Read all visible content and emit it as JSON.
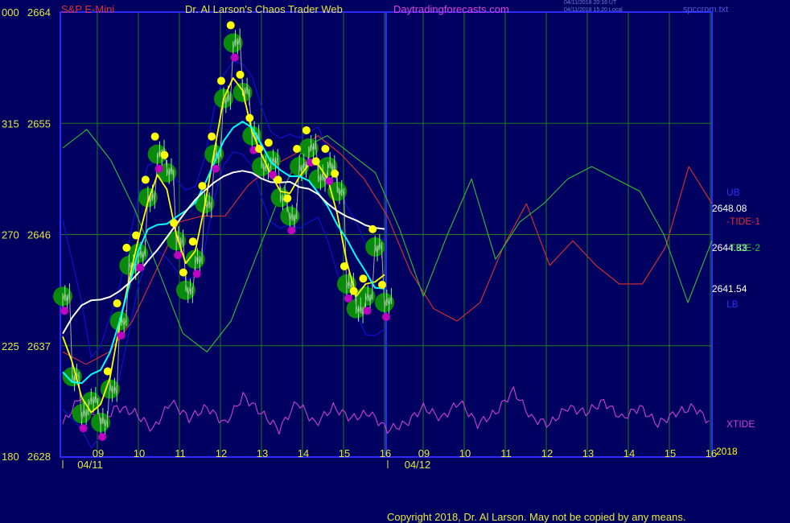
{
  "header": {
    "instrument": "S&P E-Mini",
    "title": "Dr. Al Larson's Chaos Trader Web",
    "site": "Daytradingforecasts.com",
    "stamp1": "04/11/2018 20:16 UT",
    "stamp2": "04/11/2018 15:20 Local",
    "filename": "spccrom.txt"
  },
  "footer": {
    "copyright": "Copyright 2018, Dr. Al Larson. May not be copied by any means."
  },
  "colors": {
    "background": "#000060",
    "grid": "#1e7b1e",
    "frame": "#2b2bff",
    "price": "#a8a8a8",
    "yellow_ma": "#ffff00",
    "cyan_ma": "#00ffff",
    "white_ma": "#ffffff",
    "band": "#1010d0",
    "tide1": "#e03030",
    "tide2": "#30c030",
    "xtide": "#d040d0",
    "dot_yellow": "#ffff00",
    "dot_magenta": "#c000c0",
    "halo": "#0a8a0a"
  },
  "chart_data": {
    "type": "line",
    "title": "S&P E-Mini",
    "y_axis": {
      "ylim": [
        2628,
        2664
      ],
      "tick_values": [
        2628,
        2637,
        2646,
        2655,
        2664
      ],
      "tick_labels": [
        "2628",
        "2637",
        "2646",
        "2655",
        "2664"
      ],
      "secondary_labels": [
        "180",
        "225",
        "270",
        "315",
        "000"
      ]
    },
    "x_axis": {
      "hour_labels": [
        "09",
        "10",
        "11",
        "12",
        "13",
        "14",
        "15",
        "16",
        "09",
        "10",
        "11",
        "12",
        "13",
        "14",
        "15",
        "16"
      ],
      "date_labels": [
        "04/11",
        "04/12"
      ],
      "day_divider_at_hour_index": 7
    },
    "end_labels": [
      {
        "text": "UB",
        "color": "#2b2bff"
      },
      {
        "text": "2648.08",
        "color": "#ffffff"
      },
      {
        "text": "-TIDE-1",
        "color": "#e03030"
      },
      {
        "text": "2644.83",
        "color": "#ffffff"
      },
      {
        "text": "-TIDE-2",
        "color": "#30c030"
      },
      {
        "text": "2641.54",
        "color": "#ffffff"
      },
      {
        "text": "LB",
        "color": "#2b2bff"
      },
      {
        "text": "XTIDE",
        "color": "#d040d0"
      },
      {
        "text": "2018",
        "color": "#ffff00"
      }
    ],
    "series": [
      {
        "name": "Price",
        "values": [
          2641.0,
          2634.5,
          2631.5,
          2632.5,
          2630.8,
          2633.5,
          2639.0,
          2643.5,
          2644.5,
          2649.0,
          2652.5,
          2651.0,
          2645.5,
          2641.5,
          2644.0,
          2648.5,
          2652.5,
          2657.0,
          2661.5,
          2657.5,
          2654.0,
          2651.5,
          2652.0,
          2649.0,
          2647.5,
          2651.5,
          2653.0,
          2650.5,
          2651.5,
          2649.5,
          2642.0,
          2640.0,
          2641.0,
          2645.0,
          2640.5
        ]
      },
      {
        "name": "TIDE-1",
        "values": [
          2636.5,
          2635.5,
          2636.5,
          2639.0,
          2643.0,
          2647.0,
          2647.5,
          2647.5,
          2650.0,
          2651.5,
          2652.5,
          2654.0,
          2652.5,
          2650.5,
          2647.5,
          2643.0,
          2640.0,
          2639.0,
          2640.5,
          2645.0,
          2648.5,
          2643.5,
          2645.5,
          2643.5,
          2642.0,
          2642.0,
          2645.0,
          2651.5,
          2648.5
        ]
      },
      {
        "name": "TIDE-2",
        "values": [
          2653.0,
          2654.5,
          2652.0,
          2648.0,
          2643.0,
          2638.0,
          2636.5,
          2639.0,
          2644.0,
          2649.0,
          2653.0,
          2654.0,
          2652.5,
          2651.0,
          2646.5,
          2641.0,
          2646.0,
          2650.5,
          2644.0,
          2647.0,
          2648.5,
          2650.5,
          2651.5,
          2650.5,
          2649.5,
          2646.0,
          2640.5,
          2645.5
        ]
      },
      {
        "name": "XTIDE",
        "values": [
          0.3,
          0.8,
          0.3,
          0.6,
          0.5,
          0.2,
          0.7,
          0.4,
          0.6,
          0.3,
          0.8,
          0.5,
          0.2,
          0.7,
          0.3,
          0.6,
          0.4,
          0.5,
          0.2,
          0.3,
          0.6,
          0.4,
          0.7,
          0.3,
          0.5,
          0.9,
          0.4,
          0.3,
          0.6,
          0.5,
          0.7,
          0.4,
          0.6,
          0.3,
          0.5,
          0.6,
          0.3
        ]
      }
    ],
    "grid": true
  }
}
